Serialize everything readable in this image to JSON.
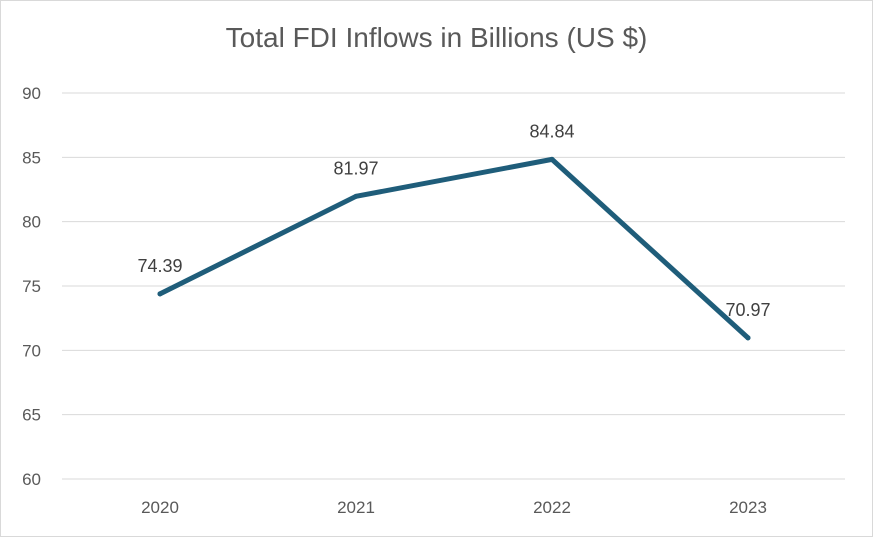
{
  "chart_data": {
    "type": "line",
    "title": "Total FDI Inflows in Billions (US $)",
    "xlabel": "",
    "ylabel": "",
    "categories": [
      "2020",
      "2021",
      "2022",
      "2023"
    ],
    "series": [
      {
        "values": [
          74.39,
          81.97,
          84.84,
          70.97
        ],
        "data_labels": [
          "74.39",
          "81.97",
          "84.84",
          "70.97"
        ],
        "color": "#1f5d7a"
      }
    ],
    "ylim": [
      60,
      90
    ],
    "y_ticks": [
      "60",
      "65",
      "70",
      "75",
      "80",
      "85",
      "90"
    ],
    "grid": true,
    "legend": "none"
  }
}
